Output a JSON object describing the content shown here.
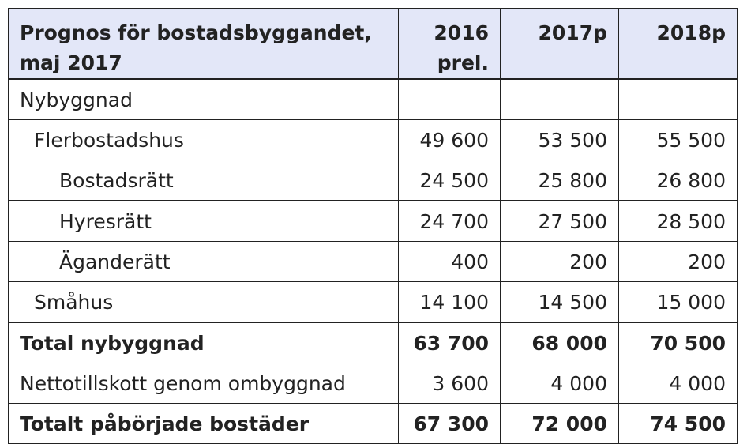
{
  "header": {
    "title_line1": "Prognos för bostadsbyggandet,",
    "title_line2": "maj 2017",
    "col1_line1": "2016",
    "col1_line2": "prel.",
    "col2": "2017p",
    "col3": "2018p"
  },
  "rows": [
    {
      "label": "Nybyggnad",
      "v1": "",
      "v2": "",
      "v3": ""
    },
    {
      "label": "Flerbostadshus",
      "v1": "49 600",
      "v2": "53 500",
      "v3": "55 500"
    },
    {
      "label": "Bostadsrätt",
      "v1": "24 500",
      "v2": "25 800",
      "v3": "26 800"
    },
    {
      "label": "Hyresrätt",
      "v1": "24 700",
      "v2": "27 500",
      "v3": "28 500"
    },
    {
      "label": "Äganderätt",
      "v1": "400",
      "v2": "200",
      "v3": "200"
    },
    {
      "label": "Småhus",
      "v1": "14 100",
      "v2": "14 500",
      "v3": "15 000"
    },
    {
      "label": "Total nybyggnad",
      "v1": "63 700",
      "v2": "68 000",
      "v3": "70 500"
    },
    {
      "label": "Nettotillskott genom ombyggnad",
      "v1": "3 600",
      "v2": "4 000",
      "v3": "4 000"
    },
    {
      "label": "Totalt påbörjade bostäder",
      "v1": "67 300",
      "v2": "72 000",
      "v3": "74 500"
    }
  ],
  "colors": {
    "header_bg": "#e3e7f8",
    "border": "#222222",
    "text": "#222222"
  }
}
